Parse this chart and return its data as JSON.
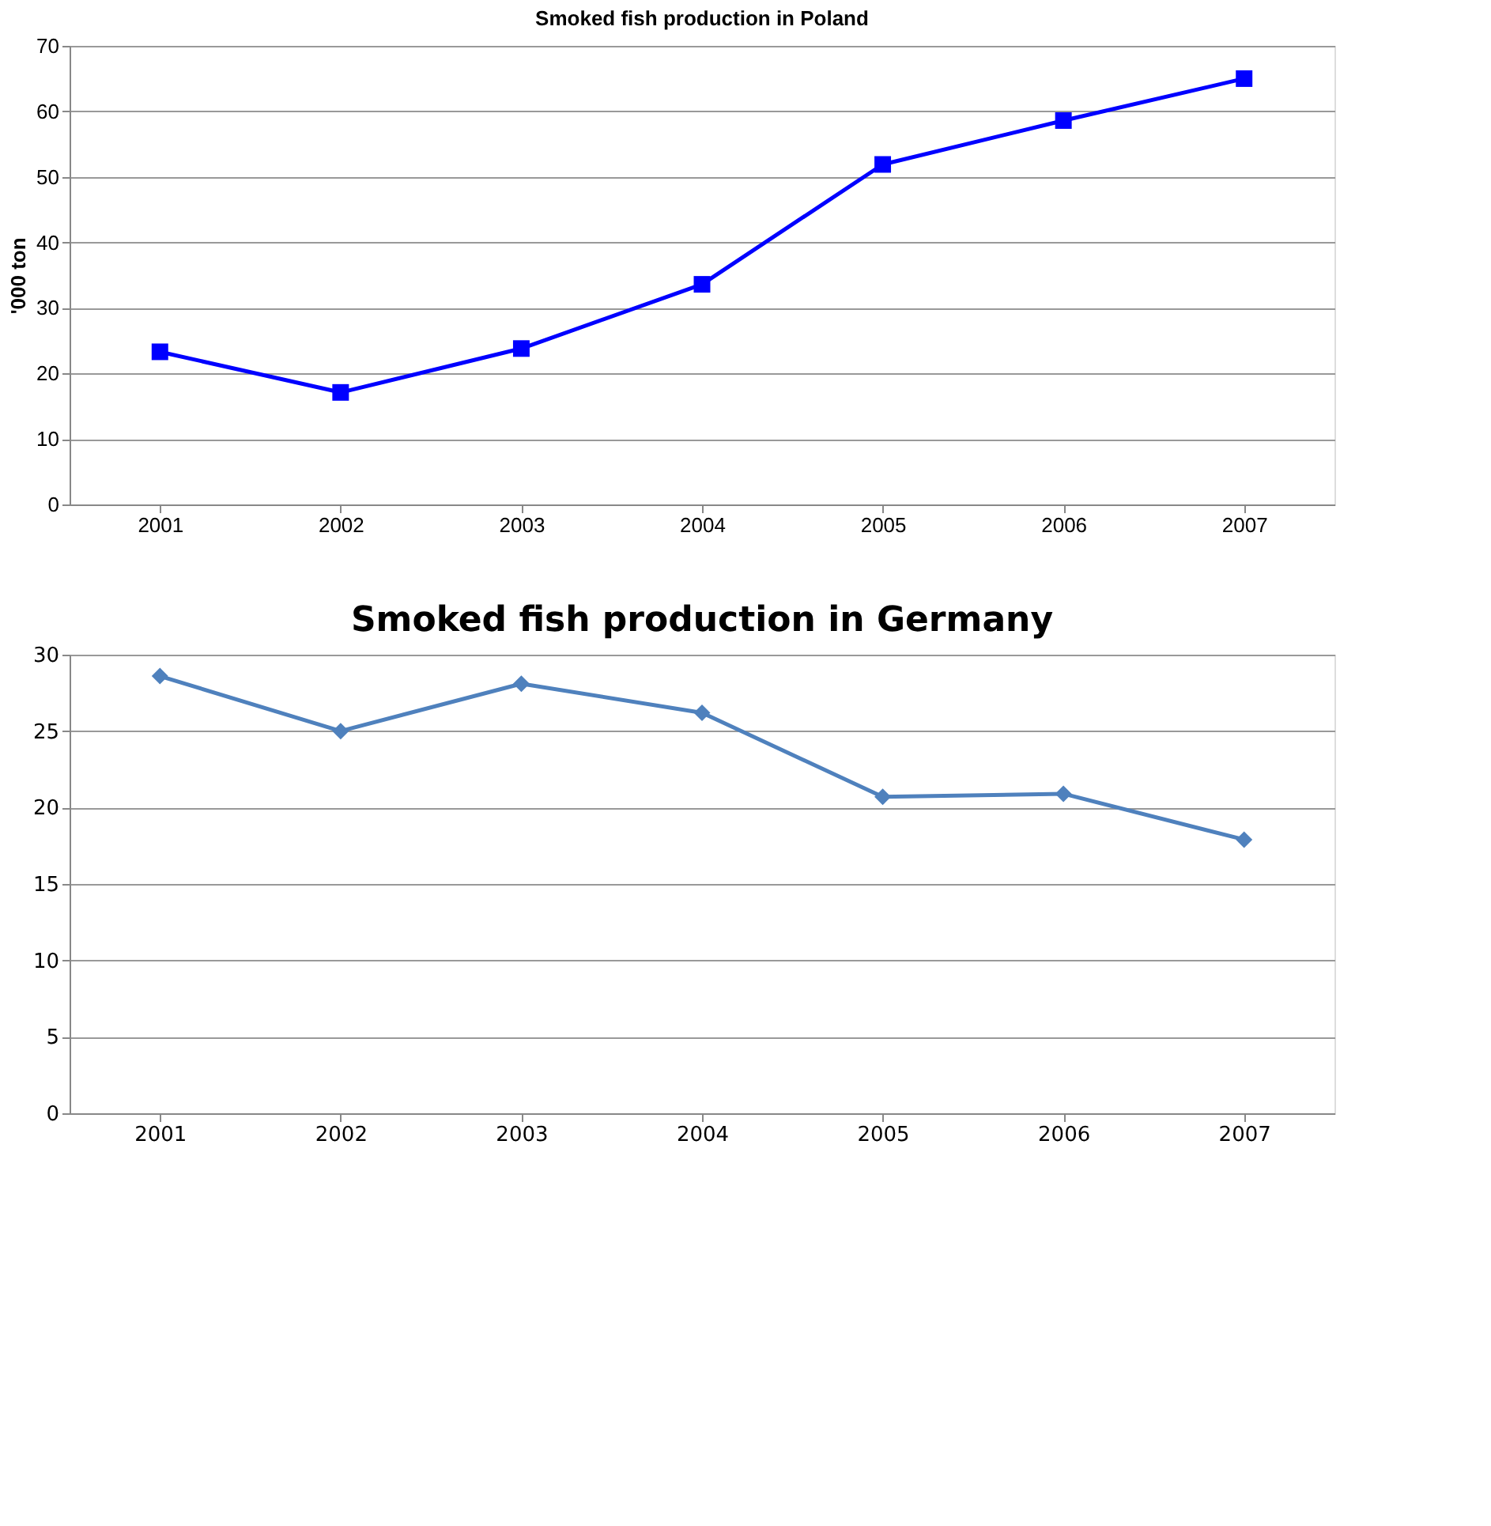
{
  "chart_data": [
    {
      "type": "line",
      "title": "Smoked fish production in Poland",
      "ylabel": "'000 ton",
      "categories": [
        "2001",
        "2002",
        "2003",
        "2004",
        "2005",
        "2006",
        "2007"
      ],
      "series": [
        {
          "color": "#0000ff",
          "values": [
            23.3,
            17.1,
            23.8,
            33.6,
            51.9,
            58.6,
            65.0
          ]
        }
      ],
      "ylim": [
        0,
        70
      ],
      "yticks": [
        0,
        10,
        20,
        30,
        40,
        50,
        60,
        70
      ],
      "grid": "y",
      "marker": "square"
    },
    {
      "type": "line",
      "title": "Smoked fish production in Germany",
      "categories": [
        "2001",
        "2002",
        "2003",
        "2004",
        "2005",
        "2006",
        "2007"
      ],
      "series": [
        {
          "color": "#4f81bd",
          "values": [
            28.6,
            25.0,
            28.1,
            26.2,
            20.7,
            20.9,
            17.9
          ]
        }
      ],
      "ylim": [
        0,
        30
      ],
      "yticks": [
        0,
        5,
        10,
        15,
        20,
        25,
        30
      ],
      "grid": "y",
      "marker": "diamond"
    }
  ]
}
